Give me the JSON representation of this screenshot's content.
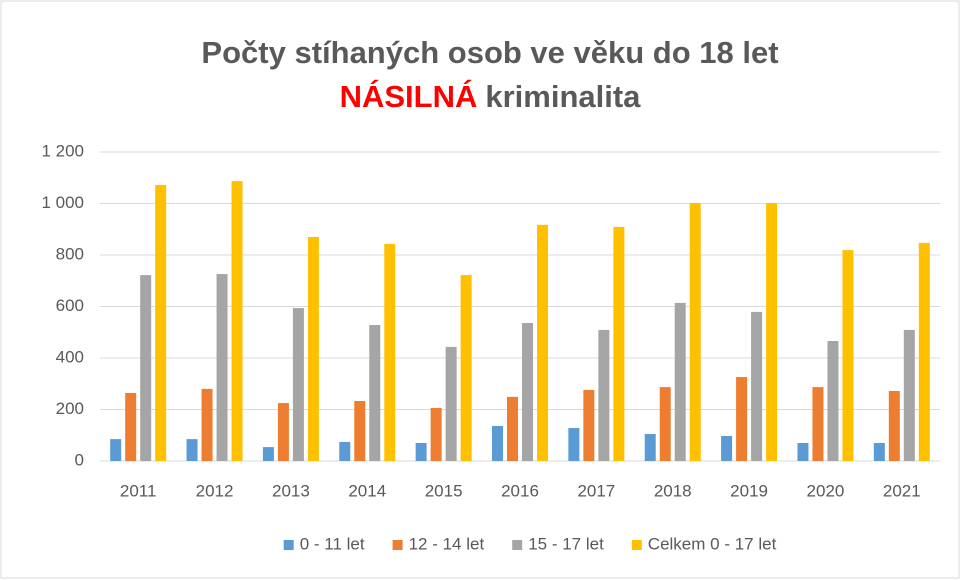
{
  "chart_data": {
    "type": "bar",
    "title": "Počty stíhaných osob ve věku do 18 let",
    "subtitle": [
      {
        "text": "NÁSILNÁ",
        "color": "#ff0000"
      },
      {
        "text": "kriminalita"
      }
    ],
    "categories": [
      "2011",
      "2012",
      "2013",
      "2014",
      "2015",
      "2016",
      "2017",
      "2018",
      "2019",
      "2020",
      "2021"
    ],
    "series": [
      {
        "name": "0 - 11 let",
        "color": "#5b9bd5",
        "values": [
          85,
          85,
          54,
          74,
          70,
          136,
          128,
          105,
          97,
          70,
          70
        ]
      },
      {
        "name": "12 - 14 let",
        "color": "#ed7d31",
        "values": [
          264,
          280,
          225,
          233,
          206,
          249,
          276,
          287,
          326,
          287,
          272
        ]
      },
      {
        "name": "15 - 17 let",
        "color": "#a5a5a5",
        "values": [
          722,
          726,
          594,
          528,
          443,
          536,
          509,
          614,
          579,
          466,
          509
        ]
      },
      {
        "name": "Celkem 0 - 17 let",
        "color": "#ffc000",
        "values": [
          1072,
          1087,
          870,
          843,
          722,
          917,
          909,
          1002,
          1002,
          819,
          847
        ]
      }
    ],
    "ylim": [
      0,
      1200
    ],
    "yticks": [
      0,
      200,
      400,
      600,
      800,
      {
        "value": 1000,
        "label": "1 000"
      },
      {
        "value": 1200,
        "label": "1 200"
      }
    ],
    "grid": true,
    "legend": "bottom"
  }
}
